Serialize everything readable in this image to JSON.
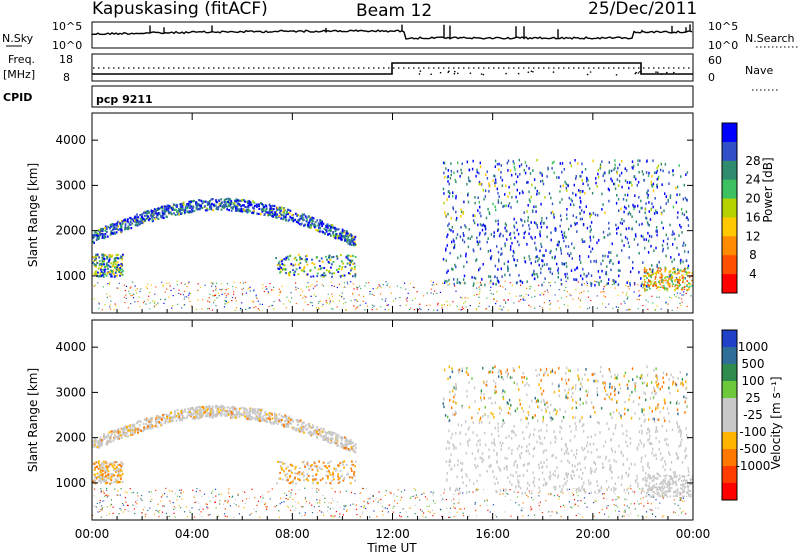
{
  "header": {
    "station": "Kapuskasing (fitACF)",
    "beam": "Beam 12",
    "date": "25/Dec/2011"
  },
  "strips": {
    "nsky_label": "N.Sky",
    "nsky_ticks": [
      "10^5",
      "10^0"
    ],
    "nsearch_label": "N.Search",
    "nsearch_ticks": [
      "10^5",
      "10^0"
    ],
    "freq_label": "Freq.",
    "freq_unit": "[MHz]",
    "freq_ticks": [
      "18",
      "8"
    ],
    "nave_label": "Nave",
    "nave_ticks": [
      "60",
      "0"
    ],
    "cpid_label": "CPID",
    "cpid_value": "pcp 9211"
  },
  "chart_data": [
    {
      "type": "heatmap",
      "name": "power",
      "ylabel": "Slant Range [km]",
      "xlabel": "Time UT",
      "ylim": [
        180,
        4600
      ],
      "yticks": [
        "1000",
        "2000",
        "3000",
        "4000"
      ],
      "xticks": [
        "00:00",
        "04:00",
        "08:00",
        "12:00",
        "16:00",
        "20:00",
        "00:00"
      ],
      "colorbar_label": "Power [dB]",
      "colorbar_ticks": [
        "4",
        "8",
        "12",
        "16",
        "20",
        "24",
        "28"
      ],
      "colorbar_colors": [
        "#0000ff",
        "#3050c8",
        "#2f8c6e",
        "#3cc060",
        "#b4d200",
        "#ffc800",
        "#ff8c00",
        "#ff5000",
        "#ff0000"
      ]
    },
    {
      "type": "heatmap",
      "name": "velocity",
      "ylabel": "Slant Range [km]",
      "xlabel": "Time UT",
      "ylim": [
        180,
        4600
      ],
      "yticks": [
        "1000",
        "2000",
        "3000",
        "4000"
      ],
      "xticks": [
        "00:00",
        "04:00",
        "08:00",
        "12:00",
        "16:00",
        "20:00",
        "00:00"
      ],
      "colorbar_label": "Velocity [m s⁻¹]",
      "colorbar_ticks": [
        "1000",
        "500",
        "100",
        "25",
        "-25",
        "-100",
        "-500",
        "-1000"
      ],
      "colorbar_colors": [
        "#2040c8",
        "#2f6e96",
        "#2f8c4e",
        "#6ec83c",
        "#c8c8c8",
        "#c8c8c8",
        "#ffb400",
        "#ff7800",
        "#ff3c00",
        "#ff0000"
      ]
    }
  ]
}
